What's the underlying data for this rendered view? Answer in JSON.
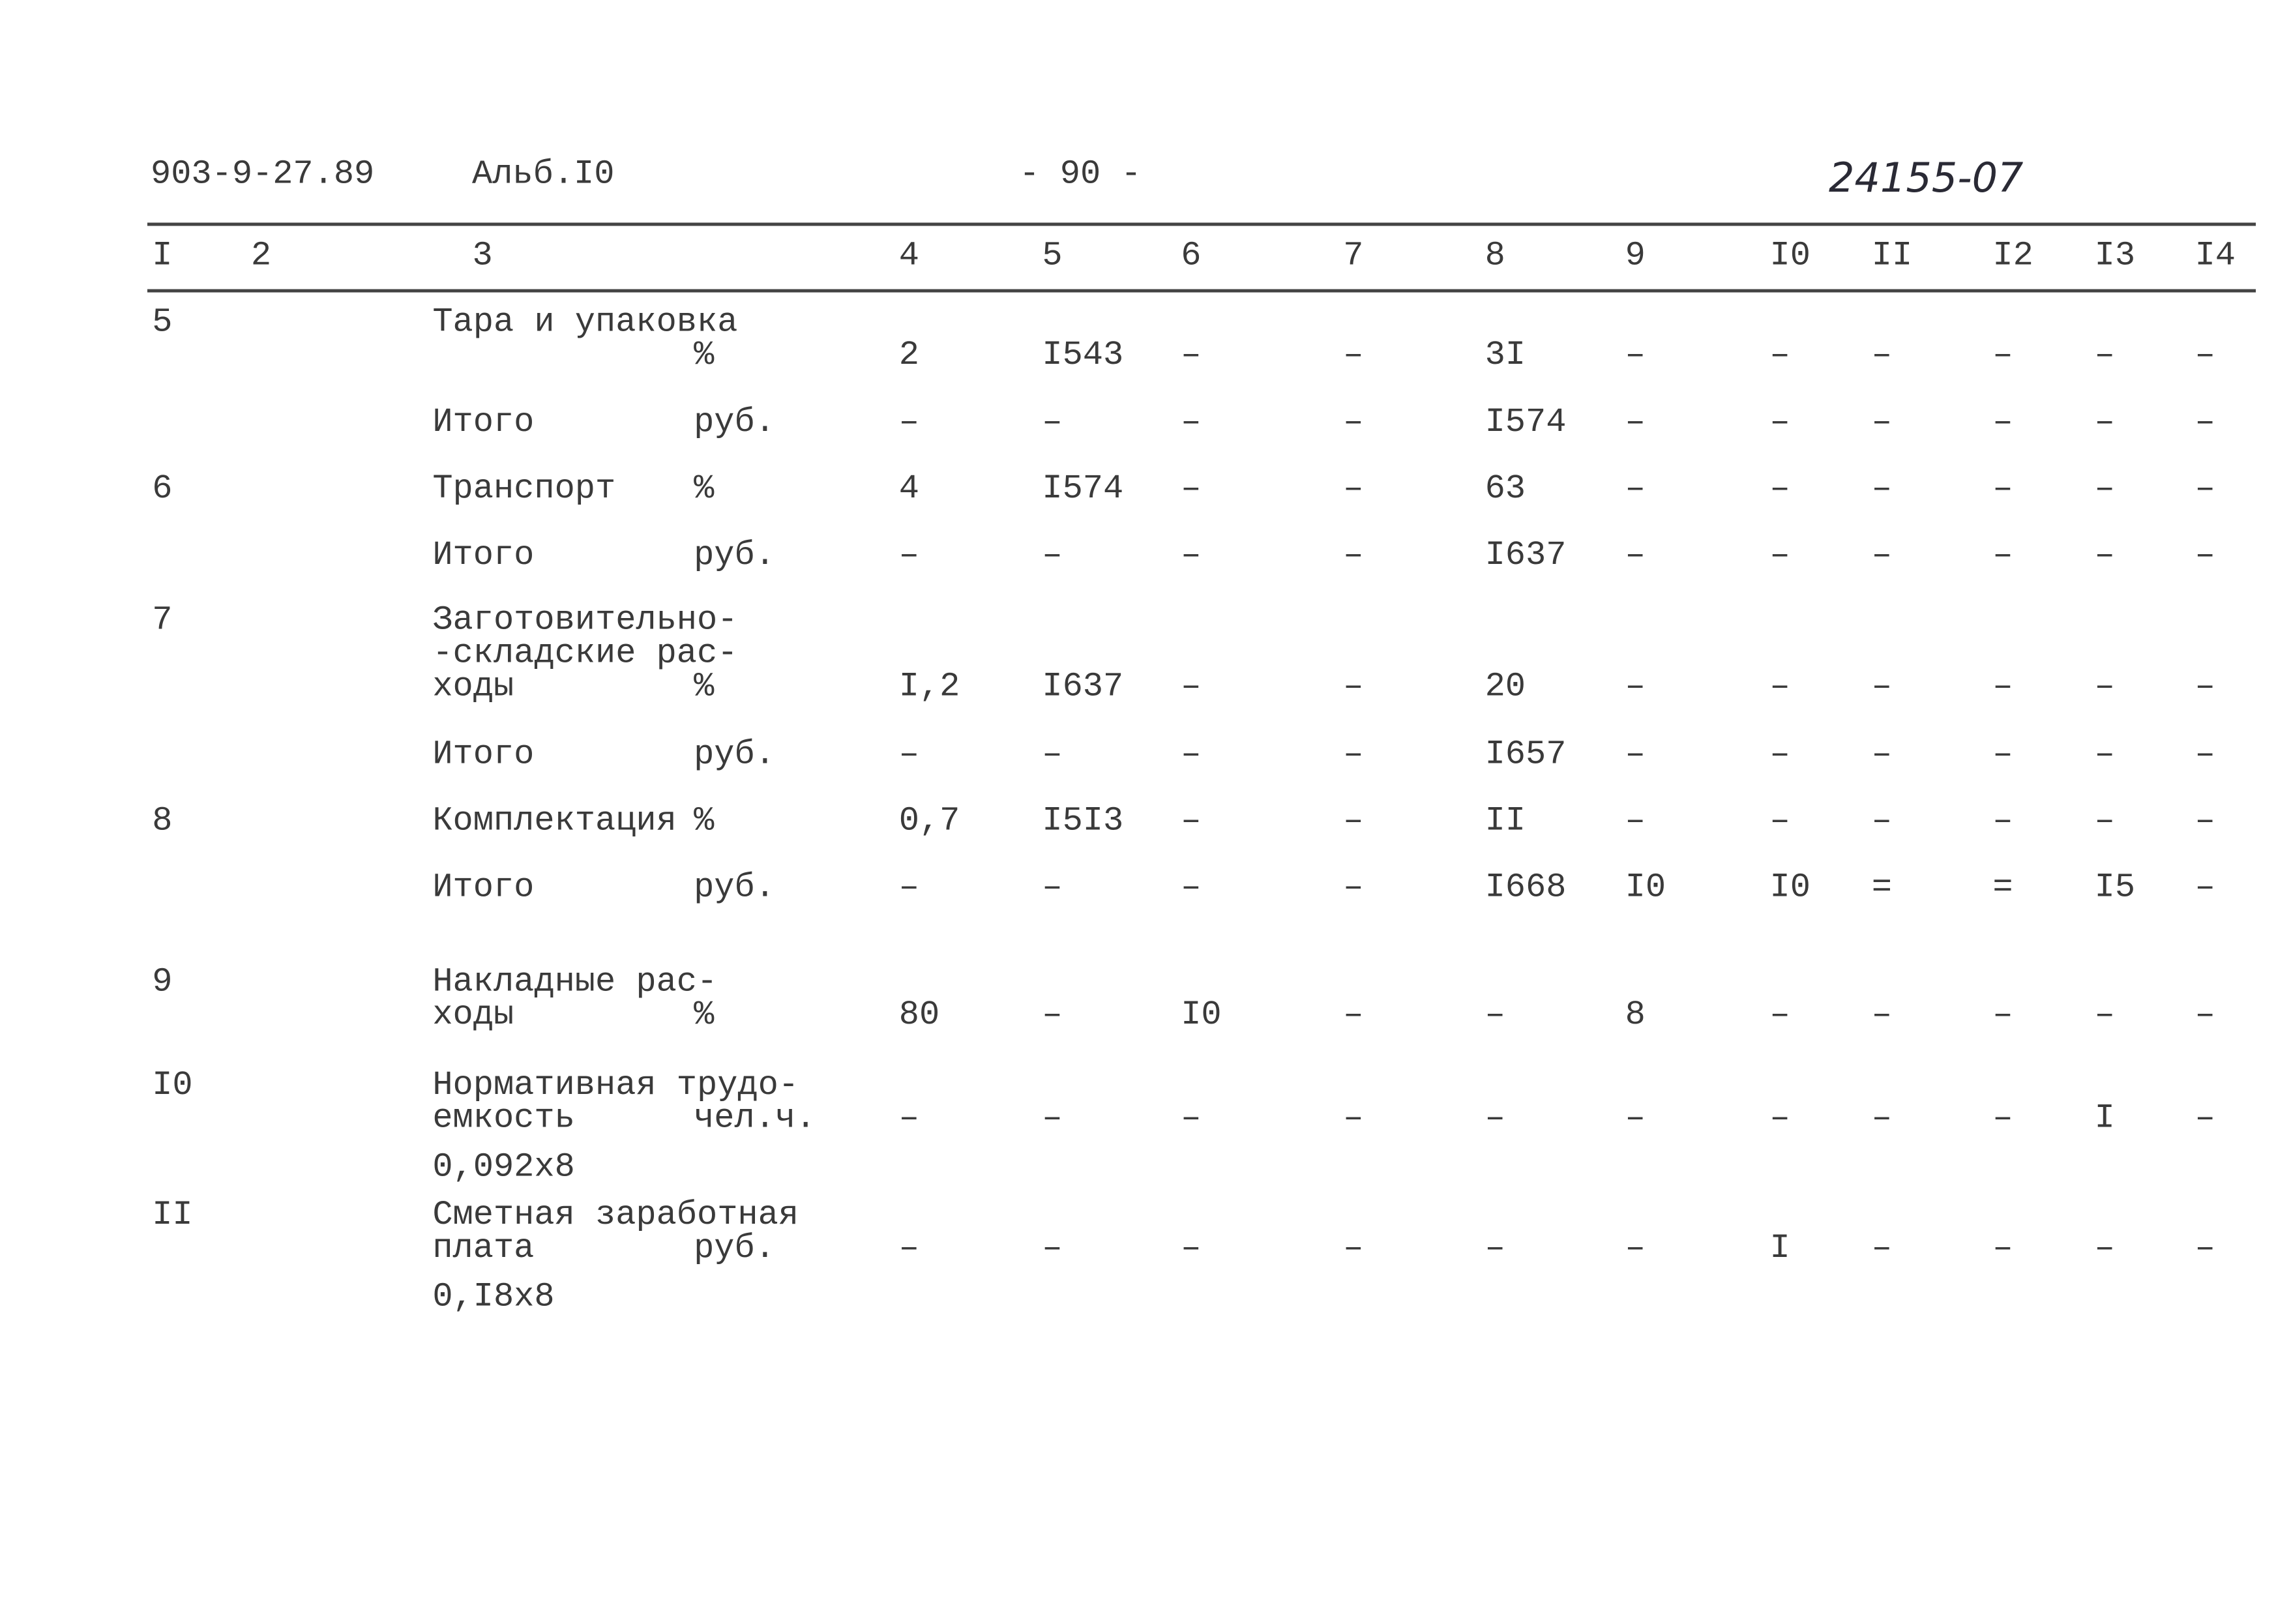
{
  "header": {
    "code": "903-9-27.89",
    "album": "Альб.I0",
    "page": "- 90 -",
    "number": "24155-07"
  },
  "table": {
    "columns": [
      "I",
      "2",
      "3",
      "4",
      "5",
      "6",
      "7",
      "8",
      "9",
      "I0",
      "II",
      "I2",
      "I3",
      "I4"
    ],
    "rows": [
      {
        "num": "5",
        "desc": [
          "Тара и упаковка"
        ],
        "unit": "%",
        "values": [
          "2",
          "I543",
          "–",
          "–",
          "3I",
          "–",
          "–",
          "–",
          "–",
          "–",
          "–"
        ]
      },
      {
        "desc": [
          "Итого"
        ],
        "unit": "руб.",
        "values": [
          "–",
          "–",
          "–",
          "–",
          "I574",
          "–",
          "–",
          "–",
          "–",
          "–",
          "–"
        ]
      },
      {
        "num": "6",
        "desc": [
          "Транспорт"
        ],
        "unit": "%",
        "values": [
          "4",
          "I574",
          "–",
          "–",
          "63",
          "–",
          "–",
          "–",
          "–",
          "–",
          "–"
        ]
      },
      {
        "desc": [
          "Итого"
        ],
        "unit": "руб.",
        "values": [
          "–",
          "–",
          "–",
          "–",
          "I637",
          "–",
          "–",
          "–",
          "–",
          "–",
          "–"
        ]
      },
      {
        "num": "7",
        "desc": [
          "Заготовительно-",
          "-складские рас-",
          "ходы"
        ],
        "unit": "%",
        "values": [
          "I,2",
          "I637",
          "–",
          "–",
          "20",
          "–",
          "–",
          "–",
          "–",
          "–",
          "–"
        ]
      },
      {
        "desc": [
          "Итого"
        ],
        "unit": "руб.",
        "values": [
          "–",
          "–",
          "–",
          "–",
          "I657",
          "–",
          "–",
          "–",
          "–",
          "–",
          "–"
        ]
      },
      {
        "num": "8",
        "desc": [
          "Комплектация"
        ],
        "unit": "%",
        "values": [
          "0,7",
          "I5I3",
          "–",
          "–",
          "II",
          "–",
          "–",
          "–",
          "–",
          "–",
          "–"
        ]
      },
      {
        "desc": [
          "Итого"
        ],
        "unit": "руб.",
        "values": [
          "–",
          "–",
          "–",
          "–",
          "I668",
          "I0",
          "I0",
          "=",
          "=",
          "I5",
          "–"
        ]
      },
      {
        "num": "9",
        "desc": [
          "Накладные рас-",
          "ходы"
        ],
        "unit": "%",
        "values": [
          "80",
          "–",
          "I0",
          "–",
          "–",
          "8",
          "–",
          "–",
          "–",
          "–",
          "–"
        ]
      },
      {
        "num": "I0",
        "desc": [
          "Нормативная трудо-",
          "емкость"
        ],
        "unit": "чел.ч.",
        "note": "0,092x8",
        "values": [
          "–",
          "–",
          "–",
          "–",
          "–",
          "–",
          "–",
          "–",
          "–",
          "I",
          "–"
        ]
      },
      {
        "num": "II",
        "desc": [
          "Сметная заработная",
          "плата"
        ],
        "unit": "руб.",
        "note": "0,I8x8",
        "values": [
          "–",
          "–",
          "–",
          "–",
          "–",
          "–",
          "I",
          "–",
          "–",
          "–",
          "–"
        ]
      }
    ]
  }
}
